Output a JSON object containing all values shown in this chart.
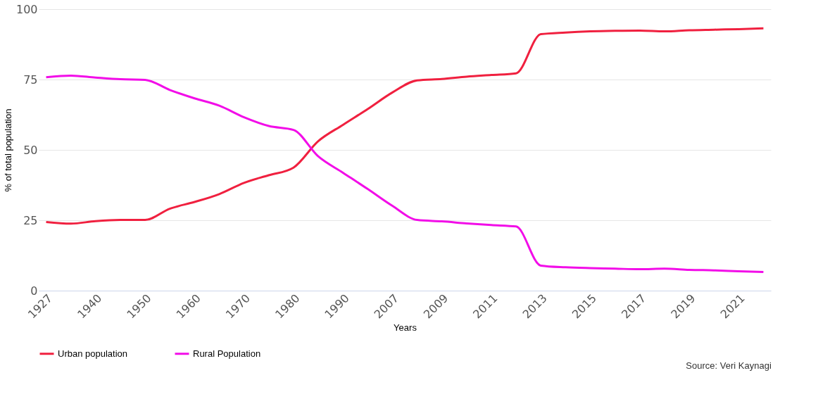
{
  "chart_data": {
    "type": "line",
    "xlabel": "Years",
    "ylabel": "% of total population",
    "categories": [
      "1927",
      null,
      "1940",
      null,
      "1950",
      null,
      "1960",
      null,
      "1970",
      null,
      "1980",
      null,
      "1990",
      null,
      "2007",
      null,
      "2009",
      null,
      "2011",
      null,
      "2013",
      null,
      "2015",
      null,
      "2017",
      null,
      "2019",
      null,
      "2021",
      null
    ],
    "series": [
      {
        "name": "Urban population",
        "color": "#f0203f",
        "values": [
          24.4,
          23.8,
          24.7,
          25.1,
          25.1,
          29.1,
          31.5,
          34.3,
          38.3,
          41.0,
          43.7,
          53.1,
          58.9,
          64.5,
          70.4,
          74.7,
          75.2,
          76.0,
          76.6,
          77.2,
          91.1,
          91.7,
          92.1,
          92.3,
          92.4,
          92.1,
          92.5,
          92.7,
          92.9,
          93.2
        ]
      },
      {
        "name": "Rural Population",
        "color": "#f20de8",
        "values": [
          75.8,
          76.4,
          75.7,
          75.1,
          74.9,
          71.3,
          68.3,
          65.7,
          61.6,
          58.5,
          57.1,
          47.7,
          41.9,
          36.1,
          30.1,
          25.1,
          24.6,
          23.9,
          23.3,
          22.8,
          8.9,
          8.3,
          8.0,
          7.8,
          7.6,
          7.8,
          7.4,
          7.2,
          6.9,
          6.6
        ]
      }
    ],
    "ylim": [
      0,
      100
    ],
    "yticks": [
      0,
      25,
      50,
      75,
      100
    ],
    "grid": "y",
    "legend": "bottom",
    "marker": "none",
    "line_style": "solid",
    "annotations": [
      "Source: Veri Kaynagi"
    ]
  }
}
